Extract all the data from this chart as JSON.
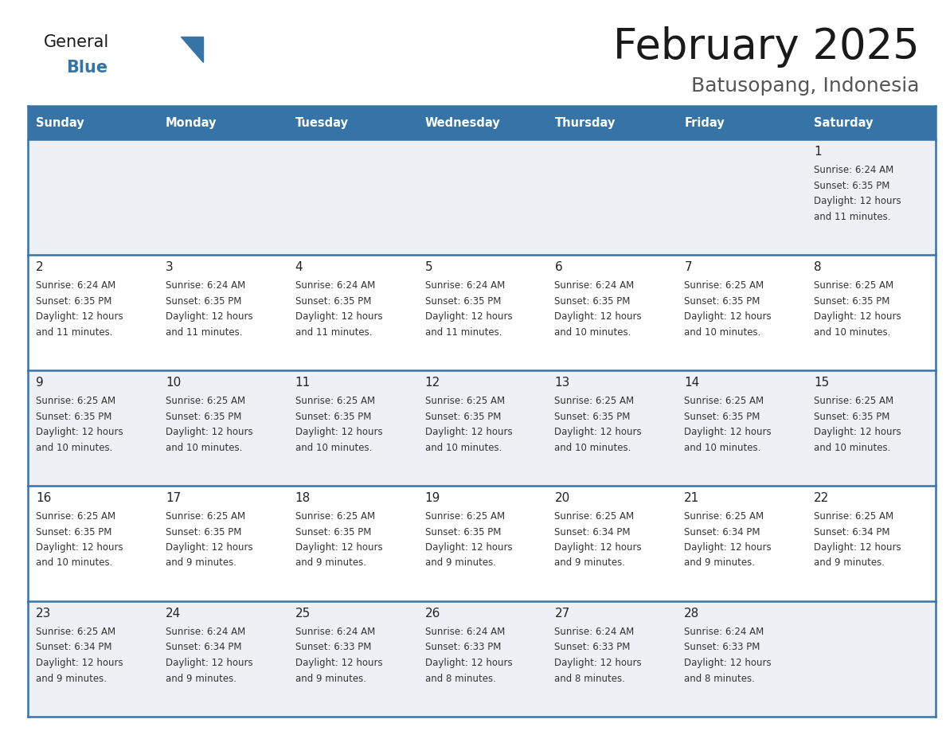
{
  "title": "February 2025",
  "subtitle": "Batusopang, Indonesia",
  "header_color": "#3674a8",
  "header_text_color": "#ffffff",
  "cell_bg_light": "#edf1f5",
  "cell_bg_white": "#ffffff",
  "border_color": "#3674a8",
  "day_headers": [
    "Sunday",
    "Monday",
    "Tuesday",
    "Wednesday",
    "Thursday",
    "Friday",
    "Saturday"
  ],
  "title_color": "#1a1a1a",
  "subtitle_color": "#555555",
  "day_num_color": "#222222",
  "cell_text_color": "#333333",
  "logo_general_color": "#1a1a1a",
  "logo_blue_color": "#3674a8",
  "logo_triangle_color": "#3674a8",
  "calendar_data": [
    [
      null,
      null,
      null,
      null,
      null,
      null,
      {
        "day": 1,
        "sunrise": "6:24 AM",
        "sunset": "6:35 PM",
        "daylight": "12 hours",
        "daylight2": "and 11 minutes."
      }
    ],
    [
      {
        "day": 2,
        "sunrise": "6:24 AM",
        "sunset": "6:35 PM",
        "daylight": "12 hours",
        "daylight2": "and 11 minutes."
      },
      {
        "day": 3,
        "sunrise": "6:24 AM",
        "sunset": "6:35 PM",
        "daylight": "12 hours",
        "daylight2": "and 11 minutes."
      },
      {
        "day": 4,
        "sunrise": "6:24 AM",
        "sunset": "6:35 PM",
        "daylight": "12 hours",
        "daylight2": "and 11 minutes."
      },
      {
        "day": 5,
        "sunrise": "6:24 AM",
        "sunset": "6:35 PM",
        "daylight": "12 hours",
        "daylight2": "and 11 minutes."
      },
      {
        "day": 6,
        "sunrise": "6:24 AM",
        "sunset": "6:35 PM",
        "daylight": "12 hours",
        "daylight2": "and 10 minutes."
      },
      {
        "day": 7,
        "sunrise": "6:25 AM",
        "sunset": "6:35 PM",
        "daylight": "12 hours",
        "daylight2": "and 10 minutes."
      },
      {
        "day": 8,
        "sunrise": "6:25 AM",
        "sunset": "6:35 PM",
        "daylight": "12 hours",
        "daylight2": "and 10 minutes."
      }
    ],
    [
      {
        "day": 9,
        "sunrise": "6:25 AM",
        "sunset": "6:35 PM",
        "daylight": "12 hours",
        "daylight2": "and 10 minutes."
      },
      {
        "day": 10,
        "sunrise": "6:25 AM",
        "sunset": "6:35 PM",
        "daylight": "12 hours",
        "daylight2": "and 10 minutes."
      },
      {
        "day": 11,
        "sunrise": "6:25 AM",
        "sunset": "6:35 PM",
        "daylight": "12 hours",
        "daylight2": "and 10 minutes."
      },
      {
        "day": 12,
        "sunrise": "6:25 AM",
        "sunset": "6:35 PM",
        "daylight": "12 hours",
        "daylight2": "and 10 minutes."
      },
      {
        "day": 13,
        "sunrise": "6:25 AM",
        "sunset": "6:35 PM",
        "daylight": "12 hours",
        "daylight2": "and 10 minutes."
      },
      {
        "day": 14,
        "sunrise": "6:25 AM",
        "sunset": "6:35 PM",
        "daylight": "12 hours",
        "daylight2": "and 10 minutes."
      },
      {
        "day": 15,
        "sunrise": "6:25 AM",
        "sunset": "6:35 PM",
        "daylight": "12 hours",
        "daylight2": "and 10 minutes."
      }
    ],
    [
      {
        "day": 16,
        "sunrise": "6:25 AM",
        "sunset": "6:35 PM",
        "daylight": "12 hours",
        "daylight2": "and 10 minutes."
      },
      {
        "day": 17,
        "sunrise": "6:25 AM",
        "sunset": "6:35 PM",
        "daylight": "12 hours",
        "daylight2": "and 9 minutes."
      },
      {
        "day": 18,
        "sunrise": "6:25 AM",
        "sunset": "6:35 PM",
        "daylight": "12 hours",
        "daylight2": "and 9 minutes."
      },
      {
        "day": 19,
        "sunrise": "6:25 AM",
        "sunset": "6:35 PM",
        "daylight": "12 hours",
        "daylight2": "and 9 minutes."
      },
      {
        "day": 20,
        "sunrise": "6:25 AM",
        "sunset": "6:34 PM",
        "daylight": "12 hours",
        "daylight2": "and 9 minutes."
      },
      {
        "day": 21,
        "sunrise": "6:25 AM",
        "sunset": "6:34 PM",
        "daylight": "12 hours",
        "daylight2": "and 9 minutes."
      },
      {
        "day": 22,
        "sunrise": "6:25 AM",
        "sunset": "6:34 PM",
        "daylight": "12 hours",
        "daylight2": "and 9 minutes."
      }
    ],
    [
      {
        "day": 23,
        "sunrise": "6:25 AM",
        "sunset": "6:34 PM",
        "daylight": "12 hours",
        "daylight2": "and 9 minutes."
      },
      {
        "day": 24,
        "sunrise": "6:24 AM",
        "sunset": "6:34 PM",
        "daylight": "12 hours",
        "daylight2": "and 9 minutes."
      },
      {
        "day": 25,
        "sunrise": "6:24 AM",
        "sunset": "6:33 PM",
        "daylight": "12 hours",
        "daylight2": "and 9 minutes."
      },
      {
        "day": 26,
        "sunrise": "6:24 AM",
        "sunset": "6:33 PM",
        "daylight": "12 hours",
        "daylight2": "and 8 minutes."
      },
      {
        "day": 27,
        "sunrise": "6:24 AM",
        "sunset": "6:33 PM",
        "daylight": "12 hours",
        "daylight2": "and 8 minutes."
      },
      {
        "day": 28,
        "sunrise": "6:24 AM",
        "sunset": "6:33 PM",
        "daylight": "12 hours",
        "daylight2": "and 8 minutes."
      },
      null
    ]
  ]
}
